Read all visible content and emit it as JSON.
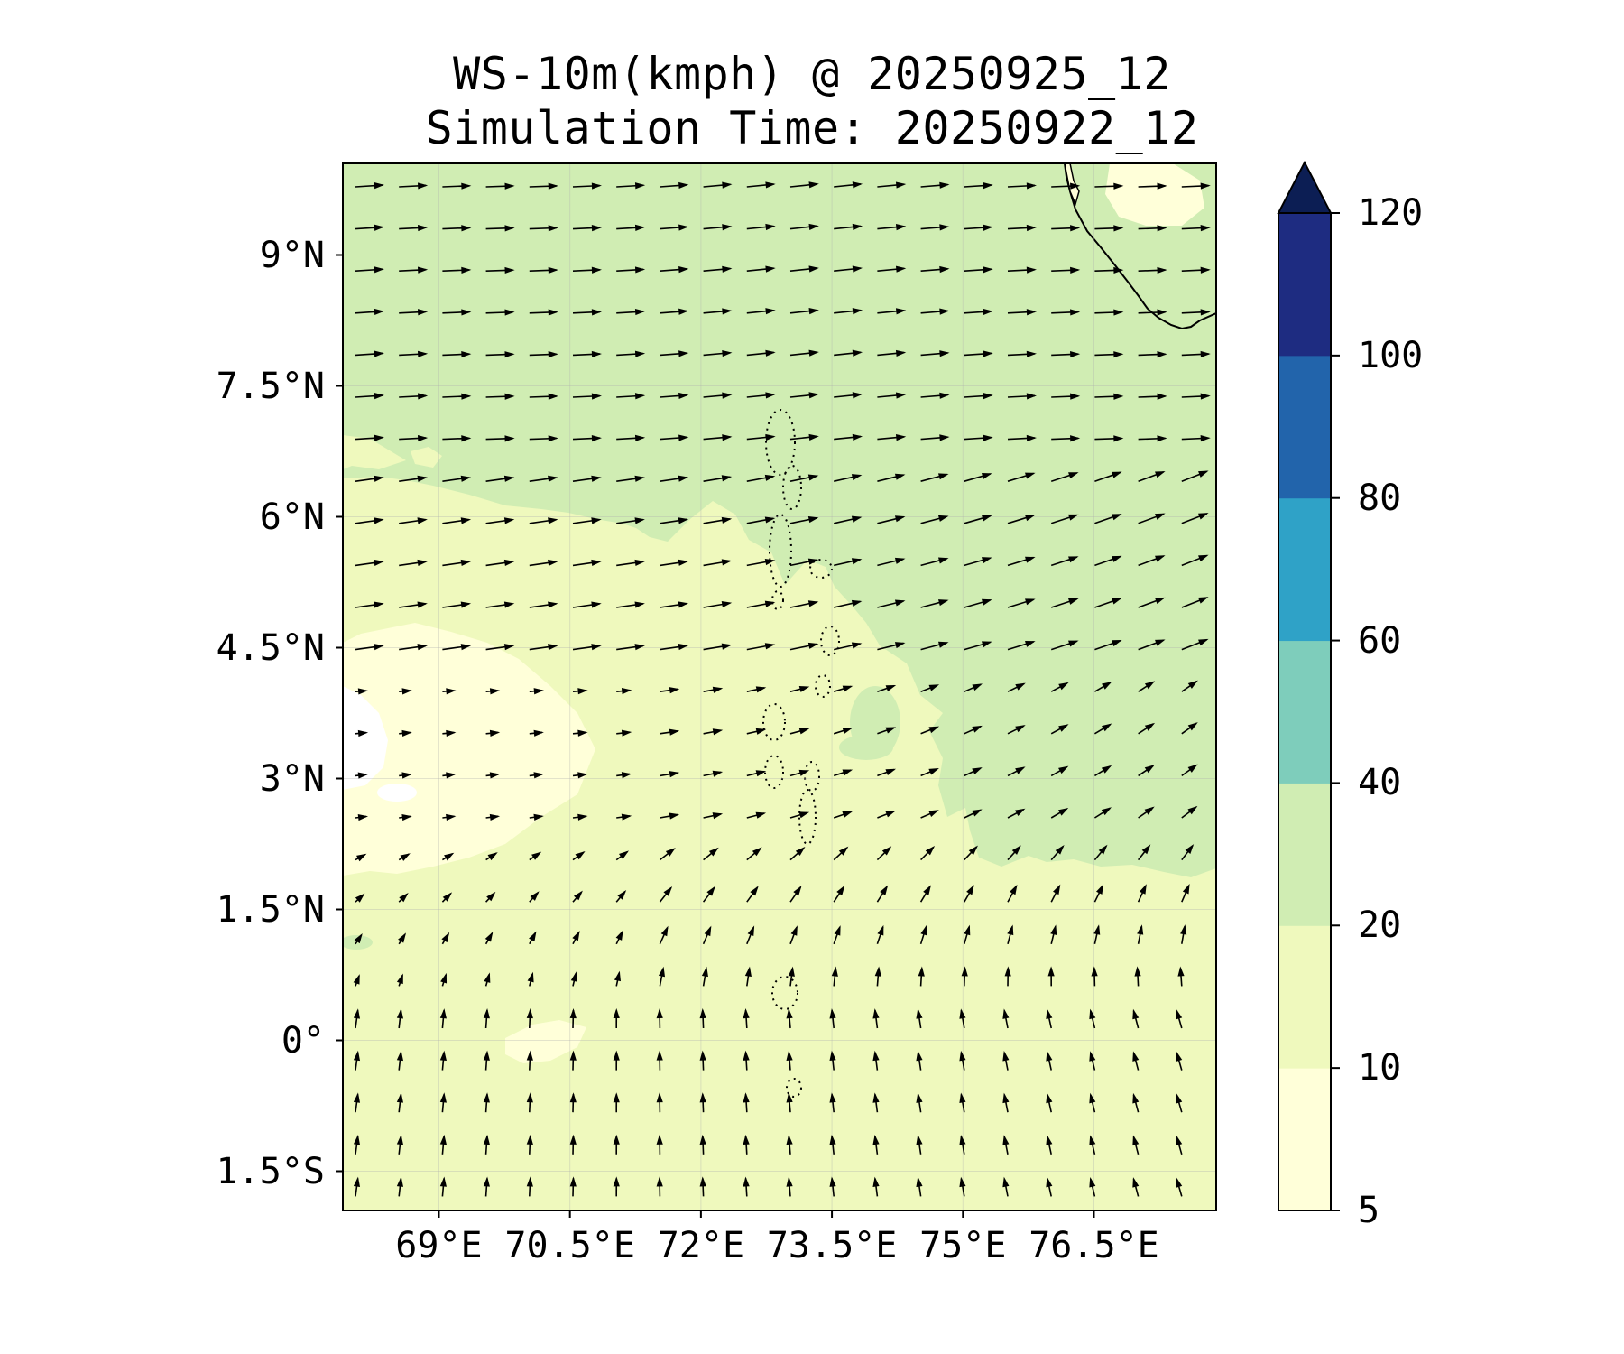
{
  "title": {
    "line1": "WS-10m(kmph) @ 20250925_12",
    "line2": "Simulation Time: 20250922_12"
  },
  "map": {
    "region": {
      "lon_min": 67.9,
      "lon_max": 77.9,
      "lat_min": -1.95,
      "lat_max": 10.05
    },
    "lat_ticks": [
      {
        "value": 9.0,
        "label": "9°N"
      },
      {
        "value": 7.5,
        "label": "7.5°N"
      },
      {
        "value": 6.0,
        "label": "6°N"
      },
      {
        "value": 4.5,
        "label": "4.5°N"
      },
      {
        "value": 3.0,
        "label": "3°N"
      },
      {
        "value": 1.5,
        "label": "1.5°N"
      },
      {
        "value": 0.0,
        "label": "0°"
      },
      {
        "value": -1.5,
        "label": "1.5°S"
      }
    ],
    "lon_ticks": [
      {
        "value": 69.0,
        "label": "69°E"
      },
      {
        "value": 70.5,
        "label": "70.5°E"
      },
      {
        "value": 72.0,
        "label": "72°E"
      },
      {
        "value": 73.5,
        "label": "73.5°E"
      },
      {
        "value": 75.0,
        "label": "75°E"
      },
      {
        "value": 76.5,
        "label": "76.5°E"
      }
    ],
    "gridlines": true,
    "field_colors": {
      "calm_5_10": "#ffffd9",
      "light_10_20": "#eff9bd",
      "moderate_20_40": "#d0edb3"
    },
    "wind_vectors": "uniform grid of arrows showing 10 m wind direction; westerly in north, turning south-westerly in east and southerly in south"
  },
  "colorbar": {
    "levels": [
      5,
      10,
      20,
      40,
      60,
      80,
      100,
      120
    ],
    "labels": [
      "5",
      "10",
      "20",
      "40",
      "60",
      "80",
      "100",
      "120"
    ],
    "colors": [
      "#ffffd9",
      "#eff9bd",
      "#d0edb3",
      "#7ecdbb",
      "#2fa2c7",
      "#2264ab",
      "#1e2c81"
    ],
    "extend_color": "#0c1e54",
    "extend": "max"
  }
}
